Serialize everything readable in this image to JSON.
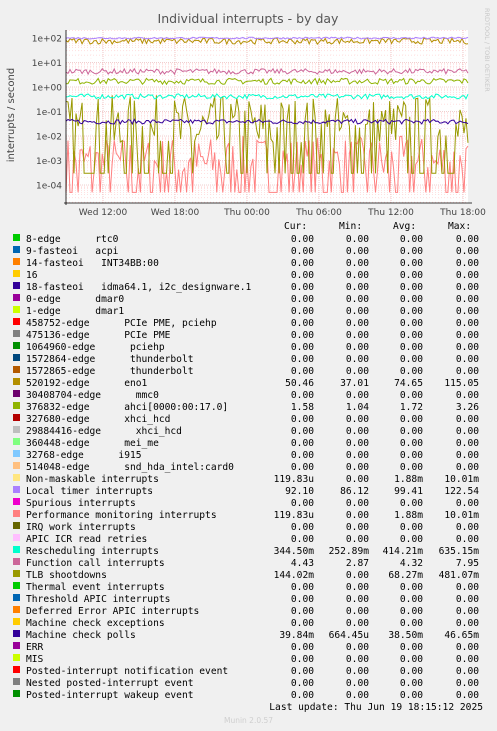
{
  "chart_data": {
    "type": "line",
    "title": "Individual interrupts - by day",
    "ylabel": "interrupts / second",
    "yscale": "log",
    "ylim": [
      5e-05,
      200
    ],
    "y_ticks": [
      "1e-04",
      "1e-03",
      "1e-02",
      "1e-01",
      "1e+00",
      "1e+01",
      "1e+02"
    ],
    "x_ticks": [
      "Wed 12:00",
      "Wed 18:00",
      "Thu 00:00",
      "Thu 06:00",
      "Thu 12:00",
      "Thu 18:00"
    ],
    "watermark": "RRDTOOL / TOBI OETIKER",
    "grid": true,
    "series": [
      {
        "name": "520192-edge eno1",
        "values": [
          50.46,
          37.01,
          74.65,
          115.05
        ]
      },
      {
        "name": "Local timer interrupts",
        "values": [
          92.1,
          86.12,
          99.41,
          122.54
        ]
      },
      {
        "name": "Rescheduling interrupts",
        "values": [
          0.3445,
          0.2529,
          0.4142,
          0.6352
        ]
      },
      {
        "name": "Function call interrupts",
        "values": [
          4.43,
          2.87,
          4.32,
          7.95
        ]
      },
      {
        "name": "376832-edge ahci[0000:00:17.0]",
        "values": [
          1.58,
          1.04,
          1.72,
          3.26
        ]
      },
      {
        "name": "Machine check polls",
        "values": [
          0.03984,
          0.000664,
          0.0385,
          0.04665
        ]
      },
      {
        "name": "TLB shootdowns",
        "values": [
          0.144,
          0,
          0.06827,
          0.481
        ]
      },
      {
        "name": "Performance monitoring interrupts",
        "values": [
          0.00012,
          0,
          0.00188,
          0.01001
        ]
      }
    ]
  },
  "legend": {
    "headers": {
      "cur": "Cur:",
      "min": "Min:",
      "avg": "Avg:",
      "max": "Max:"
    },
    "rows": [
      {
        "label": "8-edge      rtc0",
        "color": "#00cc00",
        "cur": "0.00",
        "min": "0.00",
        "avg": "0.00",
        "max": "0.00"
      },
      {
        "label": "9-fasteoi   acpi",
        "color": "#0066b3",
        "cur": "0.00",
        "min": "0.00",
        "avg": "0.00",
        "max": "0.00"
      },
      {
        "label": "14-fasteoi   INT34BB:00",
        "color": "#ff8000",
        "cur": "0.00",
        "min": "0.00",
        "avg": "0.00",
        "max": "0.00"
      },
      {
        "label": "16",
        "color": "#ffcc00",
        "cur": "0.00",
        "min": "0.00",
        "avg": "0.00",
        "max": "0.00"
      },
      {
        "label": "18-fasteoi   idma64.1, i2c_designware.1",
        "color": "#330099",
        "cur": "0.00",
        "min": "0.00",
        "avg": "0.00",
        "max": "0.00"
      },
      {
        "label": "0-edge      dmar0",
        "color": "#990099",
        "cur": "0.00",
        "min": "0.00",
        "avg": "0.00",
        "max": "0.00"
      },
      {
        "label": "1-edge      dmar1",
        "color": "#ccff00",
        "cur": "0.00",
        "min": "0.00",
        "avg": "0.00",
        "max": "0.00"
      },
      {
        "label": "458752-edge      PCIe PME, pciehp",
        "color": "#ff0000",
        "cur": "0.00",
        "min": "0.00",
        "avg": "0.00",
        "max": "0.00"
      },
      {
        "label": "475136-edge      PCIe PME",
        "color": "#808080",
        "cur": "0.00",
        "min": "0.00",
        "avg": "0.00",
        "max": "0.00"
      },
      {
        "label": "1064960-edge      pciehp",
        "color": "#008f00",
        "cur": "0.00",
        "min": "0.00",
        "avg": "0.00",
        "max": "0.00"
      },
      {
        "label": "1572864-edge      thunderbolt",
        "color": "#00487d",
        "cur": "0.00",
        "min": "0.00",
        "avg": "0.00",
        "max": "0.00"
      },
      {
        "label": "1572865-edge      thunderbolt",
        "color": "#b35a00",
        "cur": "0.00",
        "min": "0.00",
        "avg": "0.00",
        "max": "0.00"
      },
      {
        "label": "520192-edge      eno1",
        "color": "#b38f00",
        "cur": "50.46",
        "min": "37.01",
        "avg": "74.65",
        "max": "115.05"
      },
      {
        "label": "30408704-edge      mmc0",
        "color": "#6b006b",
        "cur": "0.00",
        "min": "0.00",
        "avg": "0.00",
        "max": "0.00"
      },
      {
        "label": "376832-edge      ahci[0000:00:17.0]",
        "color": "#8fb300",
        "cur": "1.58",
        "min": "1.04",
        "avg": "1.72",
        "max": "3.26"
      },
      {
        "label": "327680-edge      xhci_hcd",
        "color": "#b30000",
        "cur": "0.00",
        "min": "0.00",
        "avg": "0.00",
        "max": "0.00"
      },
      {
        "label": "29884416-edge      xhci_hcd",
        "color": "#bebebe",
        "cur": "0.00",
        "min": "0.00",
        "avg": "0.00",
        "max": "0.00"
      },
      {
        "label": "360448-edge      mei_me",
        "color": "#80ff80",
        "cur": "0.00",
        "min": "0.00",
        "avg": "0.00",
        "max": "0.00"
      },
      {
        "label": "32768-edge      i915",
        "color": "#80c9ff",
        "cur": "0.00",
        "min": "0.00",
        "avg": "0.00",
        "max": "0.00"
      },
      {
        "label": "514048-edge      snd_hda_intel:card0",
        "color": "#ffc080",
        "cur": "0.00",
        "min": "0.00",
        "avg": "0.00",
        "max": "0.00"
      },
      {
        "label": "Non-maskable interrupts",
        "color": "#ffe680",
        "cur": "119.83u",
        "min": "0.00",
        "avg": "1.88m",
        "max": "10.01m"
      },
      {
        "label": "Local timer interrupts",
        "color": "#aa80ff",
        "cur": "92.10",
        "min": "86.12",
        "avg": "99.41",
        "max": "122.54"
      },
      {
        "label": "Spurious interrupts",
        "color": "#ee00cc",
        "cur": "0.00",
        "min": "0.00",
        "avg": "0.00",
        "max": "0.00"
      },
      {
        "label": "Performance monitoring interrupts",
        "color": "#ff8080",
        "cur": "119.83u",
        "min": "0.00",
        "avg": "1.88m",
        "max": "10.01m"
      },
      {
        "label": "IRQ work interrupts",
        "color": "#666600",
        "cur": "0.00",
        "min": "0.00",
        "avg": "0.00",
        "max": "0.00"
      },
      {
        "label": "APIC ICR read retries",
        "color": "#ffbfff",
        "cur": "0.00",
        "min": "0.00",
        "avg": "0.00",
        "max": "0.00"
      },
      {
        "label": "Rescheduling interrupts",
        "color": "#00ffcc",
        "cur": "344.50m",
        "min": "252.89m",
        "avg": "414.21m",
        "max": "635.15m"
      },
      {
        "label": "Function call interrupts",
        "color": "#cc6699",
        "cur": "4.43",
        "min": "2.87",
        "avg": "4.32",
        "max": "7.95"
      },
      {
        "label": "TLB shootdowns",
        "color": "#999900",
        "cur": "144.02m",
        "min": "0.00",
        "avg": "68.27m",
        "max": "481.07m"
      },
      {
        "label": "Thermal event interrupts",
        "color": "#00cc00",
        "cur": "0.00",
        "min": "0.00",
        "avg": "0.00",
        "max": "0.00"
      },
      {
        "label": "Threshold APIC interrupts",
        "color": "#0066b3",
        "cur": "0.00",
        "min": "0.00",
        "avg": "0.00",
        "max": "0.00"
      },
      {
        "label": "Deferred Error APIC interrupts",
        "color": "#ff8000",
        "cur": "0.00",
        "min": "0.00",
        "avg": "0.00",
        "max": "0.00"
      },
      {
        "label": "Machine check exceptions",
        "color": "#ffcc00",
        "cur": "0.00",
        "min": "0.00",
        "avg": "0.00",
        "max": "0.00"
      },
      {
        "label": "Machine check polls",
        "color": "#330099",
        "cur": "39.84m",
        "min": "664.45u",
        "avg": "38.50m",
        "max": "46.65m"
      },
      {
        "label": "ERR",
        "color": "#990099",
        "cur": "0.00",
        "min": "0.00",
        "avg": "0.00",
        "max": "0.00"
      },
      {
        "label": "MIS",
        "color": "#ccff00",
        "cur": "0.00",
        "min": "0.00",
        "avg": "0.00",
        "max": "0.00"
      },
      {
        "label": "Posted-interrupt notification event",
        "color": "#ff0000",
        "cur": "0.00",
        "min": "0.00",
        "avg": "0.00",
        "max": "0.00"
      },
      {
        "label": "Nested posted-interrupt event",
        "color": "#808080",
        "cur": "0.00",
        "min": "0.00",
        "avg": "0.00",
        "max": "0.00"
      },
      {
        "label": "Posted-interrupt wakeup event",
        "color": "#008f00",
        "cur": "0.00",
        "min": "0.00",
        "avg": "0.00",
        "max": "0.00"
      }
    ]
  },
  "footer": {
    "last_update": "Last update: Thu Jun 19 18:15:12 2025",
    "munin": "Munin 2.0.57"
  }
}
